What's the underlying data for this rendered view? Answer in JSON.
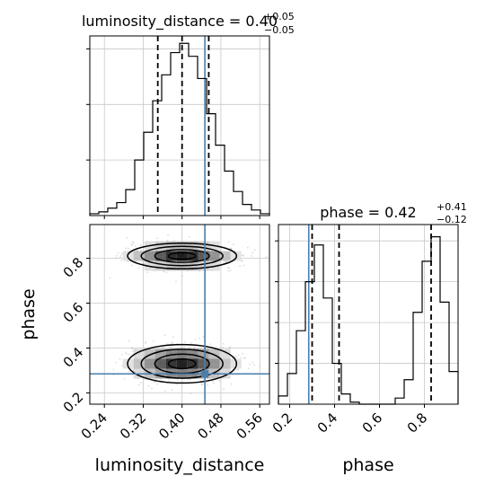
{
  "chart_data": {
    "type": "corner",
    "parameters": [
      "luminosity_distance",
      "phase"
    ],
    "titles": {
      "luminosity_distance": {
        "label": "luminosity_distance = 0.40",
        "plus": "+0.05",
        "minus": "−0.05"
      },
      "phase": {
        "label": "phase = 0.42",
        "plus": "+0.41",
        "minus": "−0.12"
      }
    },
    "truths": {
      "luminosity_distance": 0.447,
      "phase": 0.285
    },
    "luminosity_distance_range": [
      0.21,
      0.58
    ],
    "phase_range": [
      0.15,
      0.95
    ],
    "luminosity_distance_ticks": [
      "0.24",
      "0.32",
      "0.40",
      "0.48",
      "0.56"
    ],
    "phase_ticks": [
      "0.2",
      "0.4",
      "0.6",
      "0.8"
    ],
    "luminosity_distance_quantiles": [
      0.35,
      0.4,
      0.455
    ],
    "phase_quantiles": [
      0.3,
      0.42,
      0.83
    ],
    "luminosity_distance_hist": {
      "bin_edges": [
        0.21,
        0.2285,
        0.247,
        0.2655,
        0.284,
        0.3025,
        0.321,
        0.3395,
        0.358,
        0.3765,
        0.395,
        0.4135,
        0.432,
        0.4505,
        0.469,
        0.4875,
        0.506,
        0.5245,
        0.543,
        0.5615,
        0.58
      ],
      "counts": [
        0.01,
        0.02,
        0.04,
        0.07,
        0.14,
        0.3,
        0.45,
        0.62,
        0.76,
        0.88,
        0.93,
        0.86,
        0.74,
        0.55,
        0.38,
        0.24,
        0.13,
        0.06,
        0.03,
        0.01
      ]
    },
    "phase_hist": {
      "bin_edges": [
        0.15,
        0.19,
        0.23,
        0.27,
        0.31,
        0.35,
        0.39,
        0.43,
        0.47,
        0.51,
        0.55,
        0.59,
        0.63,
        0.67,
        0.71,
        0.75,
        0.79,
        0.83,
        0.87,
        0.91,
        0.95
      ],
      "counts": [
        0.04,
        0.15,
        0.36,
        0.6,
        0.78,
        0.52,
        0.2,
        0.05,
        0.01,
        0.0,
        0.0,
        0.0,
        0.0,
        0.03,
        0.12,
        0.45,
        0.7,
        0.82,
        0.5,
        0.16
      ]
    },
    "density_modes": [
      {
        "luminosity_distance": 0.4,
        "phase": 0.81
      },
      {
        "luminosity_distance": 0.4,
        "phase": 0.33
      }
    ],
    "contour_levels": [
      "0.5 sigma",
      "1 sigma",
      "1.5 sigma",
      "2 sigma"
    ],
    "grid": true
  }
}
